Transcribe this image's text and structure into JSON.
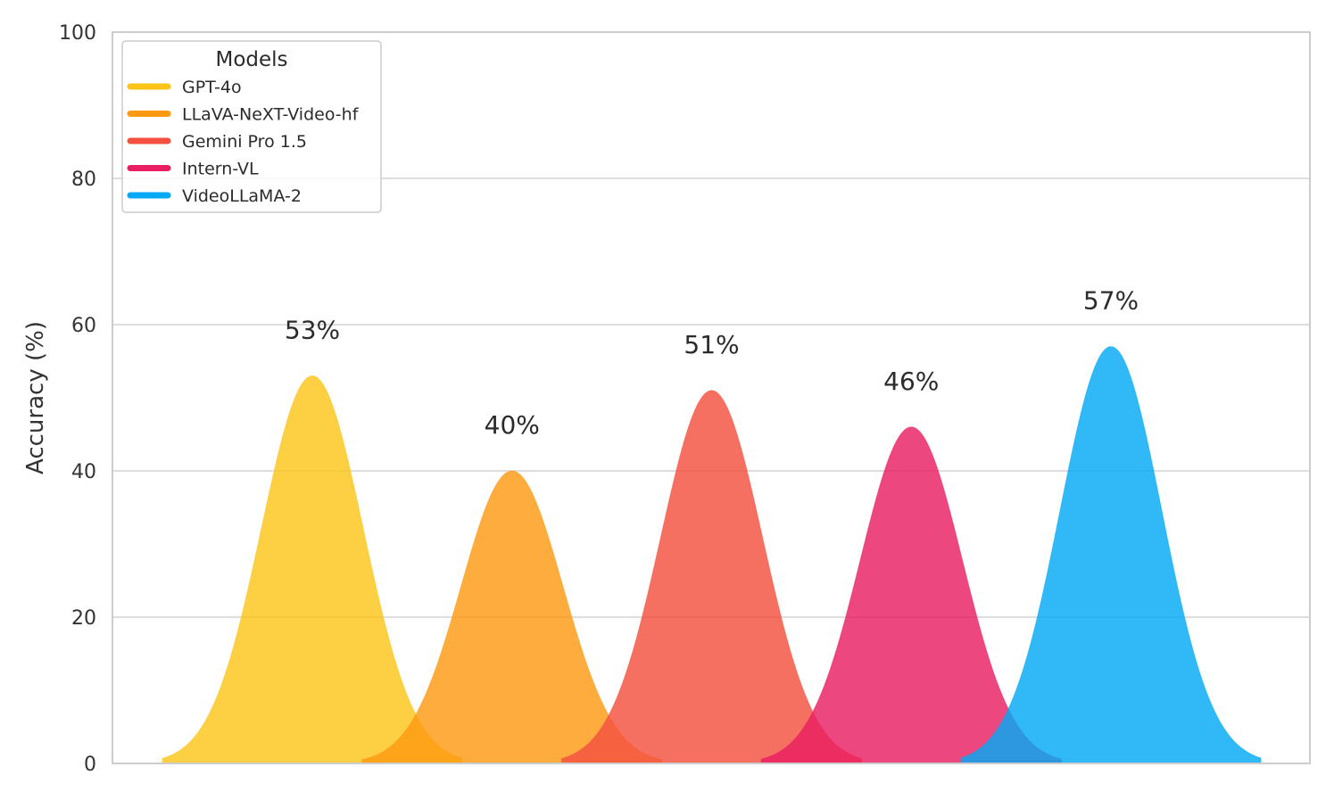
{
  "chart_data": {
    "type": "area",
    "title": "",
    "xlabel": "",
    "ylabel": "Accuracy (%)",
    "ylim": [
      0,
      100
    ],
    "yticks": [
      0,
      20,
      40,
      60,
      80,
      100
    ],
    "grid": "horizontal",
    "legend": {
      "title": "Models",
      "placement": "top-left"
    },
    "series": [
      {
        "name": "GPT-4o",
        "value": 53,
        "label": "53%",
        "color": "#FCC419"
      },
      {
        "name": "LLaVA-NeXT-Video-hf",
        "value": 40,
        "label": "40%",
        "color": "#FD9A12"
      },
      {
        "name": "Gemini Pro 1.5",
        "value": 51,
        "label": "51%",
        "color": "#F4503F"
      },
      {
        "name": "Intern-VL",
        "value": 46,
        "label": "46%",
        "color": "#E91E63"
      },
      {
        "name": "VideoLLaMA-2",
        "value": 57,
        "label": "57%",
        "color": "#03A9F4"
      }
    ]
  }
}
